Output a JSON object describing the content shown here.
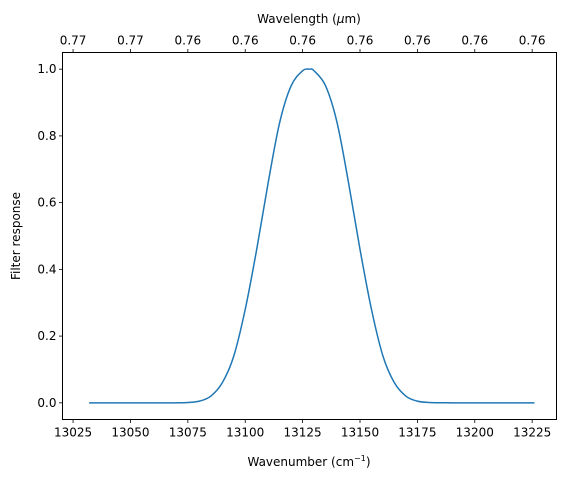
{
  "chart_data": {
    "type": "line",
    "xlabel": "Wavenumber (cm",
    "xlabel_sup": "−1",
    "xlabel_end": ")",
    "ylabel": "Filter response",
    "top_xlabel": "Wavelength (",
    "top_xlabel_mu": "μ",
    "top_xlabel_end": "m)",
    "xlim": [
      13020.4,
      13235.6
    ],
    "ylim": [
      -0.05,
      1.05
    ],
    "xticks": [
      13025,
      13050,
      13075,
      13100,
      13125,
      13150,
      13175,
      13200,
      13225
    ],
    "xtick_labels": [
      "13025",
      "13050",
      "13075",
      "13100",
      "13125",
      "13150",
      "13175",
      "13200",
      "13225"
    ],
    "yticks": [
      0.0,
      0.2,
      0.4,
      0.6,
      0.8,
      1.0
    ],
    "ytick_labels": [
      "0.0",
      "0.2",
      "0.4",
      "0.6",
      "0.8",
      "1.0"
    ],
    "top_xtick_labels": [
      "0.77",
      "0.77",
      "0.76",
      "0.76",
      "0.76",
      "0.76",
      "0.76",
      "0.76",
      "0.76"
    ],
    "line_color": "#1f77b4",
    "grid": false,
    "series": [
      {
        "x": [
          13032,
          13040,
          13050,
          13060,
          13070,
          13075,
          13080,
          13085,
          13090,
          13095,
          13100,
          13105,
          13110,
          13115,
          13120,
          13125,
          13128,
          13130,
          13135,
          13140,
          13145,
          13150,
          13155,
          13160,
          13165,
          13170,
          13175,
          13180,
          13190,
          13200,
          13210,
          13220,
          13226
        ],
        "y": [
          0.0,
          0.0,
          0.0,
          0.0,
          0.0,
          0.001,
          0.005,
          0.02,
          0.06,
          0.14,
          0.28,
          0.46,
          0.66,
          0.84,
          0.95,
          0.995,
          1.0,
          0.995,
          0.95,
          0.84,
          0.66,
          0.46,
          0.28,
          0.14,
          0.06,
          0.02,
          0.005,
          0.001,
          0.0,
          0.0,
          0.0,
          0.0,
          0.0
        ]
      }
    ]
  }
}
